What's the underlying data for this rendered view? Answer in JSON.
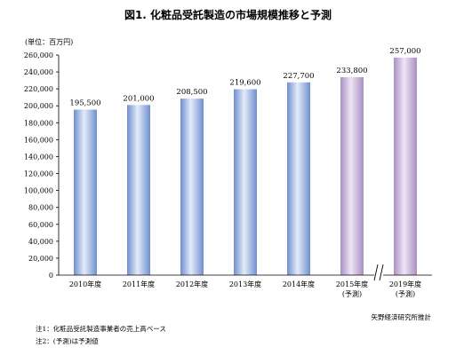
{
  "chart_data": {
    "type": "bar",
    "title": "図1. 化粧品受託製造の市場規模推移と予測",
    "unit_label": "(単位：百万円)",
    "categories": [
      [
        "2010年度"
      ],
      [
        "2011年度"
      ],
      [
        "2012年度"
      ],
      [
        "2013年度"
      ],
      [
        "2014年度"
      ],
      [
        "2015年度",
        "(予測)"
      ],
      [
        "2019年度",
        "(予測)"
      ]
    ],
    "values": [
      195500,
      201000,
      208500,
      219600,
      227700,
      233800,
      257000
    ],
    "value_labels": [
      "195,500",
      "201,000",
      "208,500",
      "219,600",
      "227,700",
      "233,800",
      "257,000"
    ],
    "forecast_flags": [
      false,
      false,
      false,
      false,
      false,
      true,
      true
    ],
    "ylim": [
      0,
      260000
    ],
    "ytick_step": 20000,
    "ytick_labels": [
      "0",
      "20,000",
      "40,000",
      "60,000",
      "80,000",
      "100,000",
      "120,000",
      "140,000",
      "160,000",
      "180,000",
      "200,000",
      "220,000",
      "240,000",
      "260,000"
    ],
    "axis_break_between": [
      5,
      6
    ],
    "grid": false,
    "colors": {
      "actual": "#6f8fd0",
      "actual_highlight": "#e3ebf8",
      "forecast": "#a98fc4",
      "forecast_highlight": "#eee5f5"
    }
  },
  "notes": [
    "注1：化粧品受託製造事業者の売上高ベース",
    "注2：(予測)は予測値"
  ],
  "source": "矢野経済研究所推計"
}
